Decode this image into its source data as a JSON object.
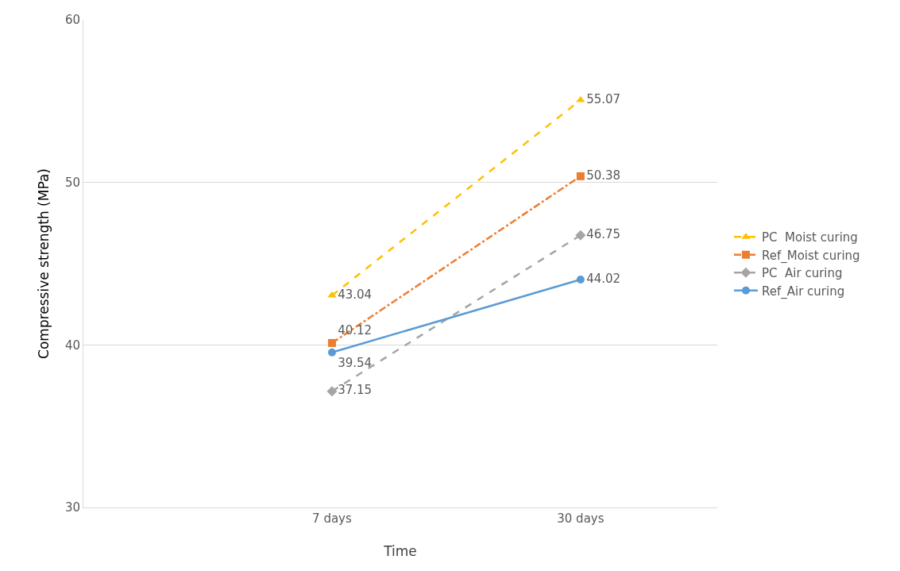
{
  "chart_data": {
    "type": "line",
    "xlabel": "Time",
    "ylabel": "Compressive strength (MPa)",
    "categories": [
      "7 days",
      "30 days"
    ],
    "series": [
      {
        "name": "PC  Moist curing",
        "color": "#ffc000",
        "values": [
          43.04,
          55.07
        ],
        "marker": "triangle",
        "line_style": "dashed"
      },
      {
        "name": "Ref_Moist curing",
        "color": "#ed7d31",
        "values": [
          40.12,
          50.38
        ],
        "marker": "square",
        "line_style": "dashdot"
      },
      {
        "name": "PC  Air curing",
        "color": "#a5a5a5",
        "values": [
          37.15,
          46.75
        ],
        "marker": "diamond",
        "line_style": "dashed"
      },
      {
        "name": "Ref_Air curing",
        "color": "#5b9bd5",
        "values": [
          39.54,
          44.02
        ],
        "marker": "circle",
        "line_style": "solid"
      }
    ],
    "ylim": [
      30,
      60
    ],
    "yticks": [
      30,
      40,
      50,
      60
    ],
    "grid": "y",
    "legend": "right",
    "data_labels": true
  }
}
